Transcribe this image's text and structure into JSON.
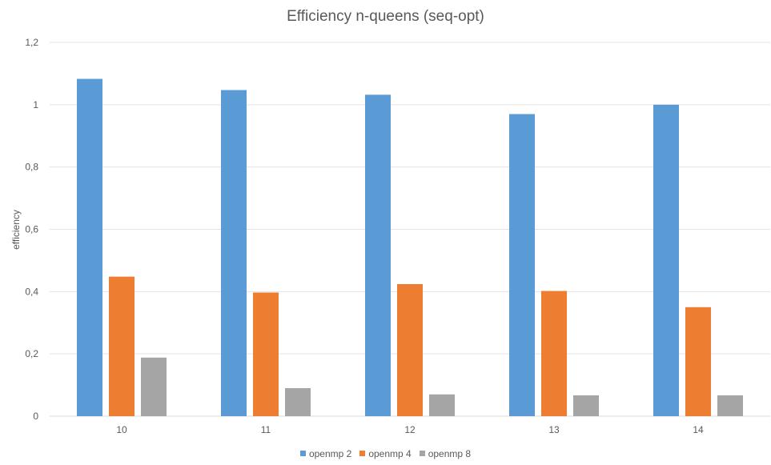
{
  "chart_data": {
    "type": "bar",
    "title": "Efficiency n-queens (seq-opt)",
    "xlabel": "",
    "ylabel": "efficiency",
    "categories": [
      "10",
      "11",
      "12",
      "13",
      "14"
    ],
    "series": [
      {
        "name": "openmp 2",
        "color": "#5B9BD5",
        "values": [
          1.083,
          1.047,
          1.032,
          0.97,
          1.0
        ]
      },
      {
        "name": "openmp 4",
        "color": "#ED7D31",
        "values": [
          0.448,
          0.397,
          0.424,
          0.402,
          0.35
        ]
      },
      {
        "name": "openmp 8",
        "color": "#A5A5A5",
        "values": [
          0.188,
          0.09,
          0.07,
          0.067,
          0.067
        ]
      }
    ],
    "ylim": [
      0,
      1.2
    ],
    "yticks": [
      "0",
      "0,2",
      "0,4",
      "0,6",
      "0,8",
      "1",
      "1,2"
    ],
    "grid": true,
    "legend_position": "bottom"
  }
}
